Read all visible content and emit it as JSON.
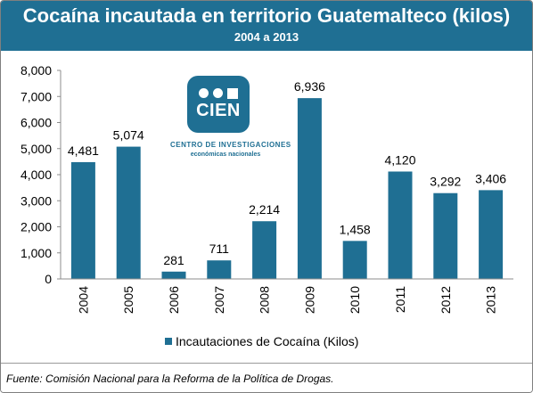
{
  "header": {
    "title": "Cocaína incautada en territorio Guatemalteco (kilos)",
    "subtitle": "2004 a 2013"
  },
  "logo": {
    "name": "CIEN",
    "caption_line1": "CENTRO DE INVESTIGACIONES",
    "caption_line2": "económicas nacionales"
  },
  "colors": {
    "header_bg": "#1f6f93",
    "bar": "#1f6f93"
  },
  "chart_data": {
    "type": "bar",
    "categories": [
      "2004",
      "2005",
      "2006",
      "2007",
      "2008",
      "2009",
      "2010",
      "2011",
      "2012",
      "2013"
    ],
    "series": [
      {
        "name": "Incautaciones de Cocaína (Kilos)",
        "values": [
          4481,
          5074,
          281,
          711,
          2214,
          6936,
          1458,
          4120,
          3292,
          3406
        ],
        "data_labels": [
          "4,481",
          "5,074",
          "281",
          "711",
          "2,214",
          "6,936",
          "1,458",
          "4,120",
          "3,292",
          "3,406"
        ]
      }
    ],
    "yticks": [
      "0",
      "1,000",
      "2,000",
      "3,000",
      "4,000",
      "5,000",
      "6,000",
      "7,000",
      "8,000"
    ],
    "ylim": [
      0,
      8000
    ],
    "grid": false,
    "legend": "bottom"
  },
  "footer": {
    "source": "Fuente: Comisión Nacional para la Reforma de la Política de Drogas."
  }
}
